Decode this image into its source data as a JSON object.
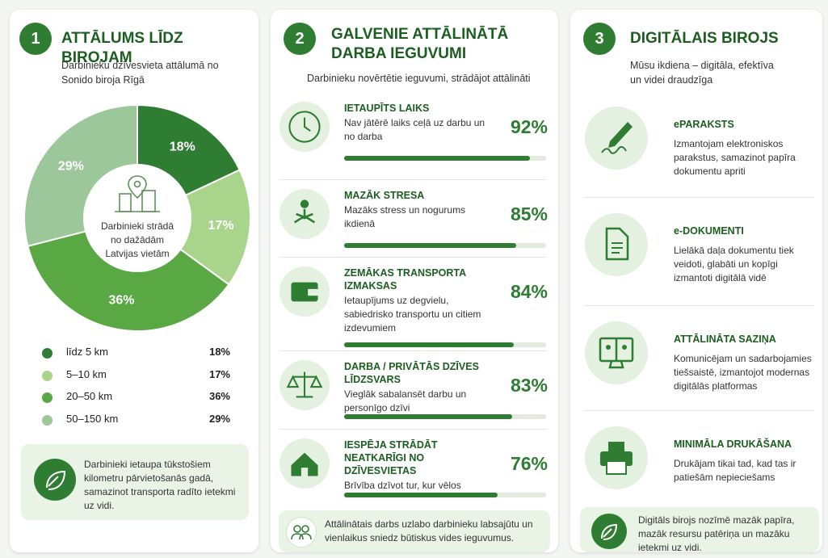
{
  "chart_data": {
    "type": "pie",
    "number": "1",
    "title": "ATTĀLUMS LĪDZ BIROJAM",
    "subtitle": "Darbinieku dzīvesvieta attālumā no Sonido biroja Rīgā",
    "center_text": "Darbinieki strādā no dažādām Latvijas vietām",
    "categories": [
      "līdz 5 km",
      "5–10 km",
      "20–50 km",
      "50–150 km"
    ],
    "values": [
      18,
      17,
      36,
      29
    ],
    "value_labels": [
      "18%",
      "17%",
      "36%",
      "29%"
    ],
    "colors": [
      "#2e7d32",
      "#a8d48c",
      "#5aa843",
      "#9cc79a"
    ],
    "note": "Darbinieki ietaupa tūkstošiem kilometru pārvietošanās gadā, samazinot transporta radīto ietekmi uz vidi."
  },
  "benefits": {
    "number": "2",
    "title": "GALVENIE ATTĀLINĀTĀ DARBA IEGUVUMI",
    "subtitle": "Darbinieku novērtētie ieguvumi, strādājot attālināti",
    "xlim": [
      0,
      100
    ],
    "color": "#2e7d32",
    "items": [
      {
        "title": "IETAUPĪTS LAIKS",
        "text": "Nav jātērē laiks ceļā uz darbu un no darba",
        "value": 92,
        "value_label": "92%"
      },
      {
        "title": "MAZĀK STRESA",
        "text": "Mazāks stress un nogurums ikdienā",
        "value": 85,
        "value_label": "85%"
      },
      {
        "title": "ZEMĀKAS TRANSPORTA IZMAKSAS",
        "text": "Ietaupījums uz degvielu, sabiedrisko transportu un citiem izdevumiem",
        "value": 84,
        "value_label": "84%"
      },
      {
        "title": "DARBA / PRIVĀTĀS DZĪVES LĪDZSVARS",
        "text": "Vieglāk sabalansēt darbu un personīgo dzīvi",
        "value": 83,
        "value_label": "83%"
      },
      {
        "title": "IESPĒJA STRĀDĀT NEATKARĪGI NO DZĪVESVIETAS",
        "text": "Brīvība dzīvot tur, kur vēlos",
        "value": 76,
        "value_label": "76%"
      }
    ],
    "note": "Attālinātais darbs uzlabo darbinieku labsajūtu un vienlaikus sniedz būtiskus vides ieguvumus."
  },
  "digital": {
    "number": "3",
    "title": "DIGITĀLAIS BIROJS",
    "subtitle": "Mūsu ikdiena – digitāla, efektīva un videi draudzīga",
    "items": [
      {
        "title": "ePARAKSTS",
        "text": "Izmantojam elektroniskos parakstus, samazinot papīra dokumentu apriti"
      },
      {
        "title": "e-DOKUMENTI",
        "text": "Lielākā daļa dokumentu tiek veidoti, glabāti un kopīgi izmantoti digitālā vidē"
      },
      {
        "title": "ATTĀLINĀTA SAZIŅA",
        "text": "Komunicējam un sadarbojamies tiešsaistē, izmantojot modernas digitālās platformas"
      },
      {
        "title": "MINIMĀLA DRUKĀŠANA",
        "text": "Drukājam tikai tad, kad tas ir patiešām nepieciešams"
      }
    ],
    "note": "Digitāls birojs nozīmē mazāk papīra, mazāk resursu patēriņa un mazāku ietekmi uz vidi."
  }
}
